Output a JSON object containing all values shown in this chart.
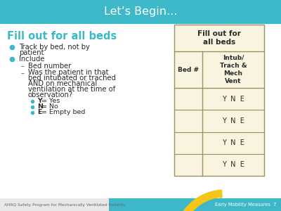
{
  "title": "Let’s Begin...",
  "title_bg": "#3db8c8",
  "title_color": "#ffffff",
  "slide_bg": "#ffffff",
  "heading_text": "Fill out for all beds",
  "heading_color": "#3db8c8",
  "table_header_line1": "Fill out for",
  "table_header_line2": "all beds",
  "table_col1": "Bed #",
  "table_col2": "Intub/\nTrach &\nMech\nVent",
  "table_bg": "#f8f4e0",
  "table_header_bg": "#f0ead0",
  "table_border": "#9a9060",
  "table_rows": 4,
  "table_row_labels": [
    "Y  N  E",
    "Y  N  E",
    "Y  N  E",
    "Y  N  E"
  ],
  "footer_left": "AHRQ Safety Program for Mechanically Ventilated Patients",
  "footer_right": "Early Mobility Measures  7",
  "footer_bg_color": "#3db8c8",
  "footer_accent_yellow": "#f5c518",
  "footer_accent_teal": "#3db8c8",
  "bullet_color": "#3db8c8",
  "sub_sub_bullet_color": "#3db8c8",
  "text_color": "#2a2a2a",
  "dash_color": "#555555"
}
